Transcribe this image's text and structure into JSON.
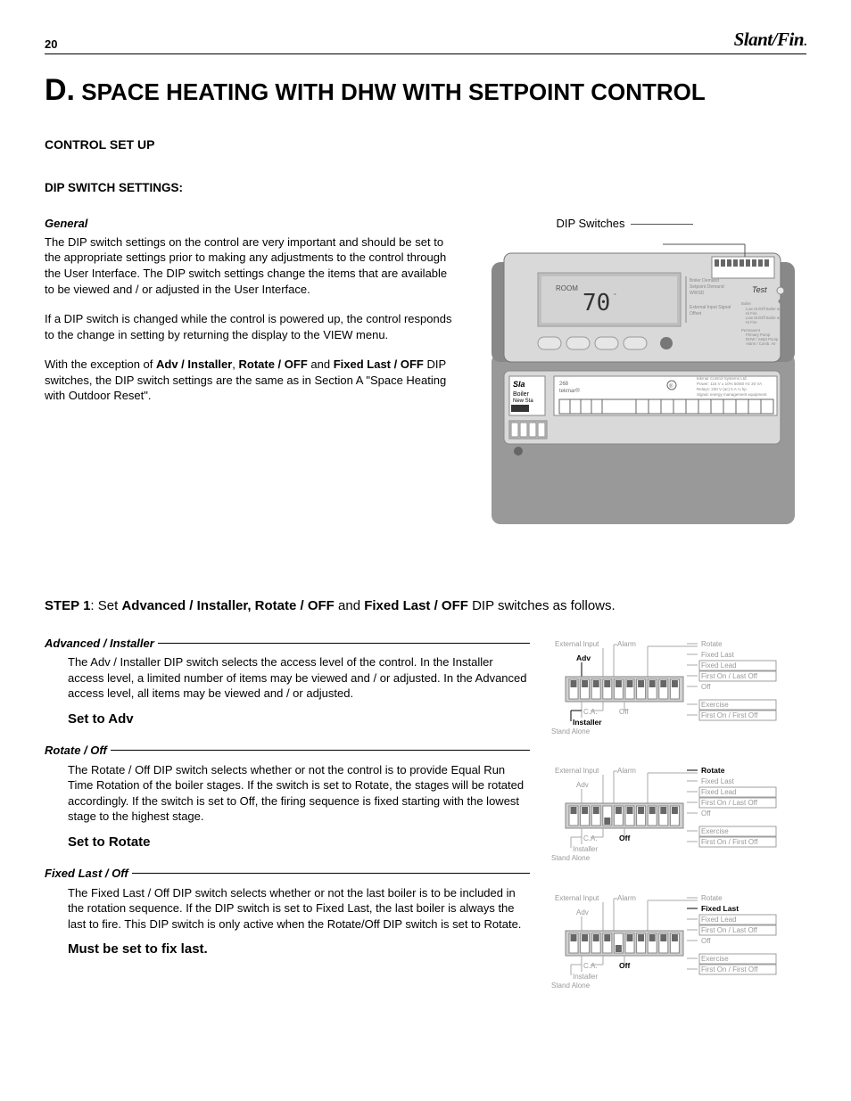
{
  "header": {
    "page_number": "20",
    "brand": "Slant/Fin"
  },
  "title": {
    "letter": "D.",
    "text": "SPACE HEATING WITH DHW WITH SETPOINT CONTROL"
  },
  "h_control_setup": "CONTROL SET UP",
  "h_dip_settings": "DIP SWITCH SETTINGS:",
  "general": {
    "heading": "General",
    "p1": "The DIP switch settings on the control are very important and should be set to the appropriate settings prior to making any adjustments to the control through the User Interface. The DIP switch settings change the items that are available to be viewed and / or adjusted in the User Interface.",
    "p2": "If a DIP switch is changed while the control is powered up, the control responds to the change in setting by returning the display to the VIEW menu.",
    "p3a": "With the exception of ",
    "p3b1": "Adv / Installer",
    "p3c": ", ",
    "p3b2": "Rotate / OFF",
    "p3d": " and ",
    "p3b3": "Fixed Last / OFF",
    "p3e": "  DIP switches, the DIP switch settings are the same as in Section A \"Space Heating with Outdoor Reset\"."
  },
  "diagram_label": "DIP Switches",
  "device": {
    "display_value": "70",
    "room_label": "ROOM",
    "test_label": "Test"
  },
  "step1": {
    "label": "STEP 1",
    "sep": ":   Set ",
    "b1": "Advanced / Installer, Rotate / OFF",
    "mid": " and ",
    "b2": "Fixed Last / OFF",
    "tail": " DIP switches as follows."
  },
  "adv": {
    "heading": "Advanced / Installer",
    "body": "The Adv / Installer DIP switch selects the access level of the control. In the Installer access level, a limited number of items may be viewed and / or adjusted. In the Advanced access level, all items may be viewed and / or adjusted.",
    "set": "Set to Adv"
  },
  "rotate": {
    "heading": "Rotate / Off",
    "body": "The Rotate / Off DIP switch selects whether or not the control is to provide Equal Run Time Rotation of the boiler stages. If the switch is set to Rotate, the stages will be rotated accordingly. If the switch is set to Off, the firing sequence is fixed starting with the lowest stage to the highest stage.",
    "set": "Set to Rotate"
  },
  "fixed": {
    "heading": "Fixed Last / Off",
    "body": "The Fixed Last / Off DIP switch selects whether or not the last boiler is to be included in the rotation sequence. If the DIP switch is set to Fixed Last, the last boiler is always the last to fire. This DIP switch is only active when the Rotate/Off DIP switch is set to Rotate.",
    "set": "Must be set to fix last."
  },
  "dip_labels": {
    "external_input": "External Input",
    "alarm": "Alarm",
    "rotate": "Rotate",
    "adv": "Adv",
    "fixed_last": "Fixed Last",
    "fixed_lead": "Fixed Lead",
    "first_last": "First On / Last Off",
    "off": "Off",
    "exercise": "Exercise",
    "first_first": "First On / First Off",
    "ca": "C.A.",
    "installer": "Installer",
    "stand_alone": "Stand Alone"
  },
  "dip_configs": {
    "adv_block": {
      "bold_top": "adv",
      "bold_bottom": "installer",
      "bold_right_idx": -1,
      "switches_up": [
        1,
        1,
        1,
        1,
        1,
        1,
        1,
        1,
        1,
        1
      ]
    },
    "rotate_block": {
      "bold_top": "rotate",
      "bold_bottom": "off_b",
      "bold_right_idx": 0,
      "switches_up": [
        1,
        1,
        1,
        0,
        1,
        1,
        1,
        1,
        1,
        1
      ]
    },
    "fixed_block": {
      "bold_top": "fixed_last",
      "bold_bottom": "off_b",
      "bold_right_idx": 1,
      "switches_up": [
        1,
        1,
        1,
        1,
        0,
        1,
        1,
        1,
        1,
        1
      ]
    }
  }
}
